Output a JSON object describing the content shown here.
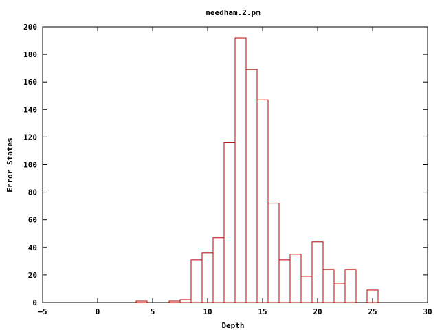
{
  "chart_data": {
    "type": "bar",
    "style": "histogram-outline",
    "title": "needham.2.pm",
    "xlabel": "Depth",
    "ylabel": "Error States",
    "xlim": [
      -5,
      30
    ],
    "ylim": [
      0,
      200
    ],
    "x_ticks": [
      -5,
      0,
      5,
      10,
      15,
      20,
      25,
      30
    ],
    "y_ticks": [
      0,
      20,
      40,
      60,
      80,
      100,
      120,
      140,
      160,
      180,
      200
    ],
    "bin_width": 1,
    "grid": false,
    "legend": "none",
    "bar_color": "#c00000",
    "x": [
      4,
      7,
      8,
      9,
      10,
      11,
      12,
      13,
      14,
      15,
      16,
      17,
      18,
      19,
      20,
      21,
      22,
      23,
      25
    ],
    "values": [
      1,
      1,
      2,
      31,
      36,
      47,
      116,
      192,
      169,
      147,
      72,
      31,
      35,
      19,
      44,
      24,
      14,
      24,
      9
    ]
  }
}
